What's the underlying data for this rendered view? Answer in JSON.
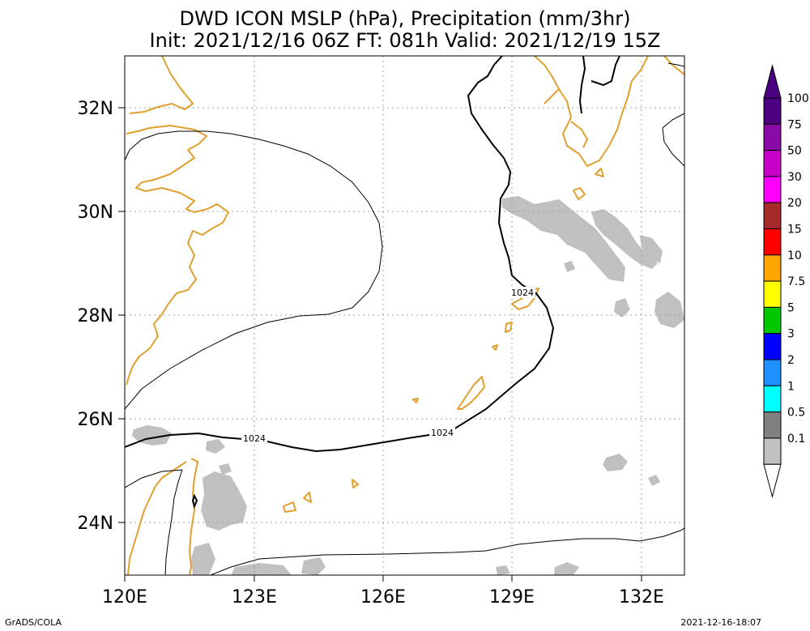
{
  "title": {
    "line1": "DWD ICON MSLP (hPa), Precipitation (mm/3hr)",
    "line2": "Init: 2021/12/16 06Z  FT: 081h  Valid: 2021/12/19 15Z"
  },
  "axes": {
    "lon_labels": [
      "120E",
      "123E",
      "126E",
      "129E",
      "132E"
    ],
    "lat_labels": [
      "32N",
      "30N",
      "28N",
      "26N",
      "24N"
    ]
  },
  "contour_labels": [
    "1024",
    "1024",
    "1024"
  ],
  "colorbar": {
    "labels": [
      "100",
      "75",
      "50",
      "30",
      "20",
      "15",
      "10",
      "7.5",
      "5",
      "3",
      "2",
      "1",
      "0.5",
      "0.1"
    ],
    "colors": [
      "#4b0082",
      "#8a0aa6",
      "#c800c8",
      "#ff00ff",
      "#a52a2a",
      "#ff0000",
      "#ffa500",
      "#ffff00",
      "#00c800",
      "#0000ff",
      "#1e90ff",
      "#00ffff",
      "#808080",
      "#c0c0c0"
    ]
  },
  "footer": {
    "left": "GrADS/COLA",
    "right": "2021-12-16-18:07"
  },
  "colors": {
    "coastline": "#e0a030",
    "precip": "#c0c0c0",
    "isobar": "#000000",
    "grid": "#a0a0a0"
  }
}
